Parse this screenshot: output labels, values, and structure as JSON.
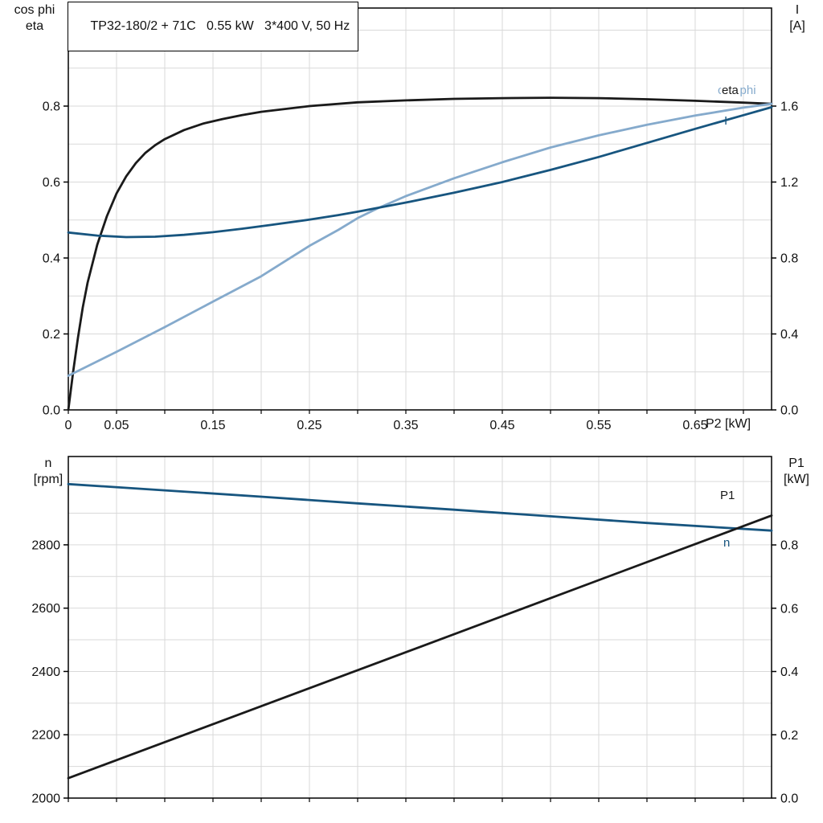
{
  "title_box": {
    "text": "TP32-180/2 + 71C   0.55 kW   3*400 V, 50 Hz"
  },
  "colors": {
    "black": "#1a1a1a",
    "dark_blue": "#17557f",
    "light_blue": "#85aacc",
    "grid": "#d9d9d9",
    "axis": "#000000"
  },
  "labels": {
    "top_left_line1": "cos phi",
    "top_left_line2": "eta",
    "top_right_line1": "I",
    "top_right_line2": "[A]",
    "x_label": "P2 [kW]",
    "bottom_left_line1": "n",
    "bottom_left_line2": "[rpm]",
    "bottom_right_line1": "P1",
    "bottom_right_line2": "[kW]",
    "curve_eta": "eta",
    "curve_cosphi": "cos phi",
    "curve_I": "I",
    "curve_P1": "P1",
    "curve_n": "n"
  },
  "chart_data": [
    {
      "type": "line",
      "title": "TP32-180/2 + 71C   0.55 kW   3*400 V, 50 Hz",
      "grid": true,
      "x_axis": {
        "label": "P2 [kW]",
        "min": 0,
        "max": 0.7292,
        "minor_step": 0.05,
        "tick_values": [
          0,
          0.05,
          0.15,
          0.25,
          0.35,
          0.45,
          0.55,
          0.65
        ],
        "tick_labels": [
          "0",
          "0.05",
          "0.15",
          "0.25",
          "0.35",
          "0.45",
          "0.55",
          "0.65"
        ]
      },
      "y_left": {
        "label": "cos phi / eta",
        "min": 0,
        "max": 1.0582,
        "minor_step": 0.1,
        "tick_values": [
          0,
          0.2,
          0.4,
          0.6,
          0.8
        ],
        "tick_labels": [
          "0.0",
          "0.2",
          "0.4",
          "0.6",
          "0.8"
        ]
      },
      "y_right": {
        "label": "I [A]",
        "min": 0,
        "max": 2.1164,
        "tick_values": [
          0,
          0.4,
          0.8,
          1.2,
          1.6
        ],
        "tick_labels": [
          "0.0",
          "0.4",
          "0.8",
          "1.2",
          "1.6"
        ]
      },
      "series": [
        {
          "name": "eta",
          "axis": "left",
          "color": "#1a1a1a",
          "points": [
            [
              0,
              0
            ],
            [
              0.005,
              0.1
            ],
            [
              0.01,
              0.19
            ],
            [
              0.015,
              0.27
            ],
            [
              0.02,
              0.335
            ],
            [
              0.03,
              0.435
            ],
            [
              0.04,
              0.51
            ],
            [
              0.05,
              0.57
            ],
            [
              0.06,
              0.615
            ],
            [
              0.07,
              0.65
            ],
            [
              0.08,
              0.677
            ],
            [
              0.09,
              0.697
            ],
            [
              0.1,
              0.713
            ],
            [
              0.12,
              0.737
            ],
            [
              0.14,
              0.754
            ],
            [
              0.16,
              0.766
            ],
            [
              0.18,
              0.776
            ],
            [
              0.2,
              0.785
            ],
            [
              0.25,
              0.8
            ],
            [
              0.3,
              0.81
            ],
            [
              0.35,
              0.815
            ],
            [
              0.4,
              0.819
            ],
            [
              0.45,
              0.821
            ],
            [
              0.5,
              0.822
            ],
            [
              0.55,
              0.821
            ],
            [
              0.6,
              0.818
            ],
            [
              0.65,
              0.814
            ],
            [
              0.7,
              0.809
            ],
            [
              0.7292,
              0.806
            ]
          ]
        },
        {
          "name": "cos phi",
          "axis": "left",
          "color": "#85aacc",
          "points": [
            [
              0,
              0.09
            ],
            [
              0.05,
              0.153
            ],
            [
              0.1,
              0.218
            ],
            [
              0.15,
              0.285
            ],
            [
              0.2,
              0.352
            ],
            [
              0.25,
              0.432
            ],
            [
              0.28,
              0.474
            ],
            [
              0.3,
              0.505
            ],
            [
              0.32,
              0.53
            ],
            [
              0.35,
              0.563
            ],
            [
              0.4,
              0.61
            ],
            [
              0.45,
              0.652
            ],
            [
              0.5,
              0.691
            ],
            [
              0.55,
              0.723
            ],
            [
              0.6,
              0.751
            ],
            [
              0.65,
              0.775
            ],
            [
              0.7,
              0.796
            ],
            [
              0.7292,
              0.806
            ]
          ]
        },
        {
          "name": "I",
          "axis": "right",
          "color": "#17557f",
          "points": [
            [
              0,
              0.934
            ],
            [
              0.03,
              0.918
            ],
            [
              0.06,
              0.91
            ],
            [
              0.09,
              0.912
            ],
            [
              0.12,
              0.922
            ],
            [
              0.15,
              0.936
            ],
            [
              0.18,
              0.954
            ],
            [
              0.21,
              0.974
            ],
            [
              0.25,
              1.002
            ],
            [
              0.28,
              1.026
            ],
            [
              0.3,
              1.044
            ],
            [
              0.35,
              1.092
            ],
            [
              0.4,
              1.144
            ],
            [
              0.45,
              1.2
            ],
            [
              0.5,
              1.264
            ],
            [
              0.55,
              1.332
            ],
            [
              0.6,
              1.406
            ],
            [
              0.65,
              1.48
            ],
            [
              0.7,
              1.552
            ],
            [
              0.7292,
              1.594
            ]
          ]
        }
      ]
    },
    {
      "type": "line",
      "title": "",
      "grid": true,
      "x_axis": {
        "label": "",
        "min": 0,
        "max": 0.7292,
        "minor_step": 0.05,
        "tick_values": [],
        "tick_labels": []
      },
      "y_left": {
        "label": "n [rpm]",
        "min": 2000,
        "max": 3079,
        "minor_step": 100,
        "tick_values": [
          2000,
          2200,
          2400,
          2600,
          2800
        ],
        "tick_labels": [
          "2000",
          "2200",
          "2400",
          "2600",
          "2800"
        ]
      },
      "y_right": {
        "label": "P1 [kW]",
        "min": 0,
        "max": 1.0794,
        "tick_values": [
          0,
          0.2,
          0.4,
          0.6,
          0.8
        ],
        "tick_labels": [
          "0.0",
          "0.2",
          "0.4",
          "0.6",
          "0.8"
        ]
      },
      "series": [
        {
          "name": "n",
          "axis": "left",
          "color": "#17557f",
          "points": [
            [
              0,
              2992
            ],
            [
              0.1,
              2972
            ],
            [
              0.2,
              2952
            ],
            [
              0.3,
              2931
            ],
            [
              0.4,
              2911
            ],
            [
              0.5,
              2890
            ],
            [
              0.6,
              2869
            ],
            [
              0.7292,
              2845
            ]
          ]
        },
        {
          "name": "P1",
          "axis": "right",
          "color": "#1a1a1a",
          "points": [
            [
              0,
              0.063
            ],
            [
              0.365,
              0.478
            ],
            [
              0.7292,
              0.893
            ]
          ]
        }
      ]
    }
  ]
}
